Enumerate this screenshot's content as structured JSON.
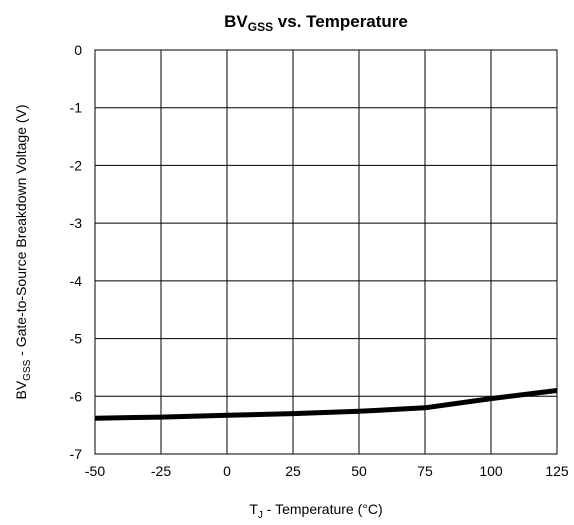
{
  "chart_data": {
    "type": "line",
    "title": {
      "main": "BV",
      "sub": "GSS",
      "rest": " vs. Temperature"
    },
    "xlabel": {
      "main": "T",
      "sub": "J",
      "rest": " - Temperature (°C)"
    },
    "ylabel": {
      "main": "BV",
      "sub": "GSS",
      "rest": " - Gate-to-Source Breakdown Voltage (V)"
    },
    "xlim": [
      -50,
      125
    ],
    "ylim": [
      -7,
      0
    ],
    "x_ticks": [
      "-50",
      "-25",
      "0",
      "25",
      "50",
      "75",
      "100",
      "125"
    ],
    "y_ticks": [
      "0",
      "-1",
      "-2",
      "-3",
      "-4",
      "-5",
      "-6",
      "-7"
    ],
    "grid": true,
    "series": [
      {
        "x": [
          -50,
          -25,
          0,
          25,
          50,
          75,
          100,
          125
        ],
        "y": [
          -6.38,
          -6.36,
          -6.33,
          -6.3,
          -6.26,
          -6.2,
          -6.04,
          -5.9
        ]
      }
    ],
    "line_color": "#000000"
  }
}
